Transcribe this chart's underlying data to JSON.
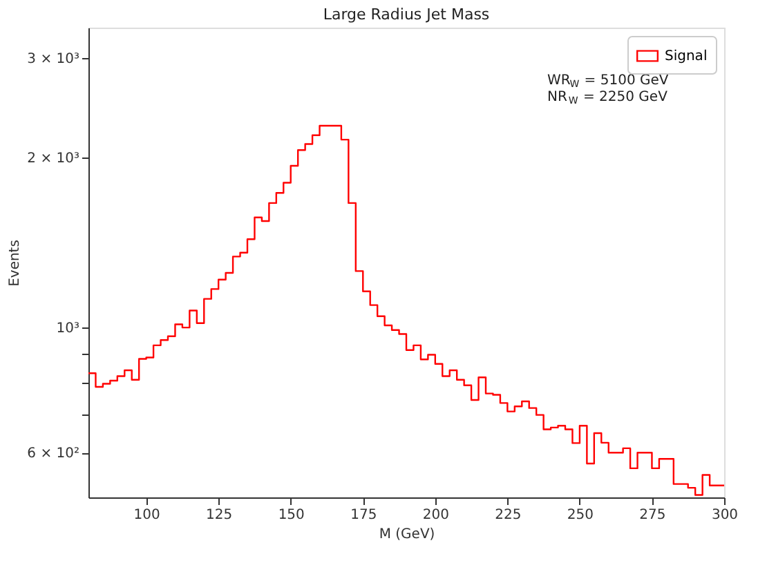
{
  "chart_data": {
    "type": "histogram",
    "title": "Large Radius Jet Mass",
    "xlabel": "M (GeV)",
    "ylabel": "Events",
    "bins": [
      80,
      82.5,
      85,
      87.5,
      90,
      92.5,
      95,
      97.5,
      100,
      102.5,
      105,
      107.5,
      110,
      112.5,
      115,
      117.5,
      120,
      122.5,
      125,
      127.5,
      130,
      132.5,
      135,
      137.5,
      140,
      142.5,
      145,
      147.5,
      150,
      152.5,
      155,
      157.5,
      160,
      162.5,
      165,
      167.5,
      170,
      172.5,
      175,
      177.5,
      180,
      182.5,
      185,
      187.5,
      190,
      192.5,
      195,
      197.5,
      200,
      202.5,
      205,
      207.5,
      210,
      212.5,
      215,
      217.5,
      220,
      222.5,
      225,
      227.5,
      230,
      232.5,
      235,
      237.5,
      240,
      242.5,
      245,
      247.5,
      250,
      252.5,
      255,
      257.5,
      260,
      262.5,
      265,
      267.5,
      270,
      272.5,
      275,
      277.5,
      280,
      282.5,
      285,
      287.5,
      290,
      292.5,
      295,
      297.5,
      300
    ],
    "series": [
      {
        "name": "Signal",
        "color": "#ff0000",
        "values": [
          830,
          785,
          795,
          805,
          820,
          840,
          808,
          880,
          885,
          930,
          950,
          965,
          1013,
          1000,
          1072,
          1018,
          1124,
          1170,
          1216,
          1250,
          1336,
          1357,
          1434,
          1567,
          1544,
          1662,
          1732,
          1806,
          1935,
          2063,
          2114,
          2192,
          2278,
          2278,
          2278,
          2153,
          1662,
          1259,
          1159,
          1096,
          1047,
          1009,
          990,
          974,
          912,
          930,
          878,
          895,
          862,
          820,
          840,
          808,
          790,
          744,
          816,
          764,
          760,
          735,
          710,
          725,
          740,
          720,
          700,
          660,
          665,
          670,
          660,
          624,
          670,
          574,
          650,
          625,
          600,
          600,
          611,
          563,
          600,
          600,
          563,
          585,
          585,
          528,
          528,
          520,
          505,
          548,
          525,
          525
        ]
      }
    ],
    "xlim": [
      80,
      300
    ],
    "xticks": [
      100,
      125,
      150,
      175,
      200,
      225,
      250,
      275,
      300
    ],
    "ylim": [
      500,
      3400
    ],
    "log": true,
    "yticks": [
      {
        "value": 600,
        "label": "6 × 10²"
      },
      {
        "value": 700,
        "label": null
      },
      {
        "value": 800,
        "label": null
      },
      {
        "value": 900,
        "label": null
      },
      {
        "value": 1000,
        "label": "10³"
      },
      {
        "value": 2000,
        "label": "2 × 10³"
      },
      {
        "value": 3000,
        "label": "3 × 10³"
      }
    ],
    "legend": "top right",
    "grid": false,
    "annotations": [
      "WR$_{W}$ = 5100 GeV",
      "NR$_{W}$ = 2250 GeV"
    ]
  }
}
